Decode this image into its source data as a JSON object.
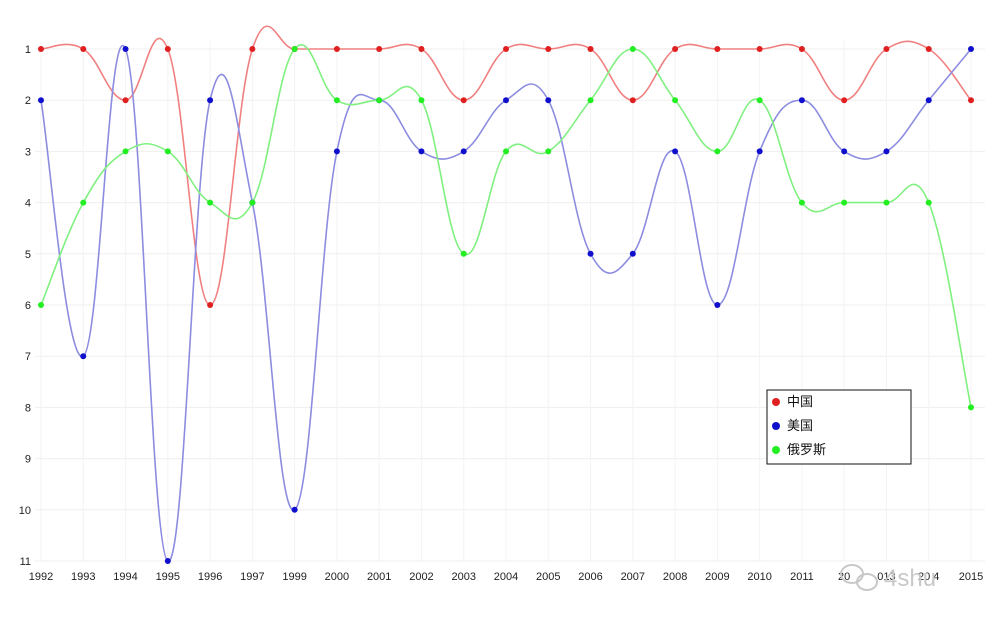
{
  "chart_data": {
    "type": "line",
    "y_scale": "reversed",
    "smooth": true,
    "grid": true,
    "x": [
      "1992",
      "1993",
      "1994",
      "1995",
      "1996",
      "1997",
      "1999",
      "2000",
      "2001",
      "2002",
      "2003",
      "2004",
      "2005",
      "2006",
      "2007",
      "2008",
      "2009",
      "2010",
      "2011",
      "2012",
      "2013",
      "2014",
      "2015"
    ],
    "x_tick_labels": [
      "1992",
      "1993",
      "1994",
      "1995",
      "1996",
      "1997",
      "1999",
      "2000",
      "2001",
      "2002",
      "2003",
      "2004",
      "2005",
      "2006",
      "2007",
      "2008",
      "2009",
      "2010",
      "2011",
      "20",
      "013",
      "20 4",
      "2015"
    ],
    "ylim": [
      1,
      11
    ],
    "yticks": [
      1,
      2,
      3,
      4,
      5,
      6,
      7,
      8,
      9,
      10,
      11
    ],
    "legend_position": "right",
    "series": [
      {
        "name": "中国",
        "color": "#e02020",
        "line_color": "#f08080",
        "values": [
          1,
          1,
          2,
          1,
          6,
          1,
          1,
          1,
          1,
          1,
          2,
          1,
          1,
          1,
          2,
          1,
          1,
          1,
          1,
          2,
          1,
          1,
          2
        ]
      },
      {
        "name": "美国",
        "color": "#1010cc",
        "line_color": "#8c8ce0",
        "values": [
          2,
          7,
          1,
          11,
          2,
          4,
          10,
          3,
          2,
          3,
          3,
          2,
          2,
          5,
          5,
          3,
          6,
          3,
          2,
          3,
          3,
          2,
          1
        ]
      },
      {
        "name": "俄罗斯",
        "color": "#22ee22",
        "line_color": "#80f080",
        "values": [
          6,
          4,
          3,
          3,
          4,
          4,
          1,
          2,
          2,
          2,
          5,
          3,
          3,
          2,
          1,
          2,
          3,
          2,
          4,
          4,
          4,
          4,
          8
        ]
      }
    ]
  },
  "watermark": {
    "text": "4shu"
  }
}
